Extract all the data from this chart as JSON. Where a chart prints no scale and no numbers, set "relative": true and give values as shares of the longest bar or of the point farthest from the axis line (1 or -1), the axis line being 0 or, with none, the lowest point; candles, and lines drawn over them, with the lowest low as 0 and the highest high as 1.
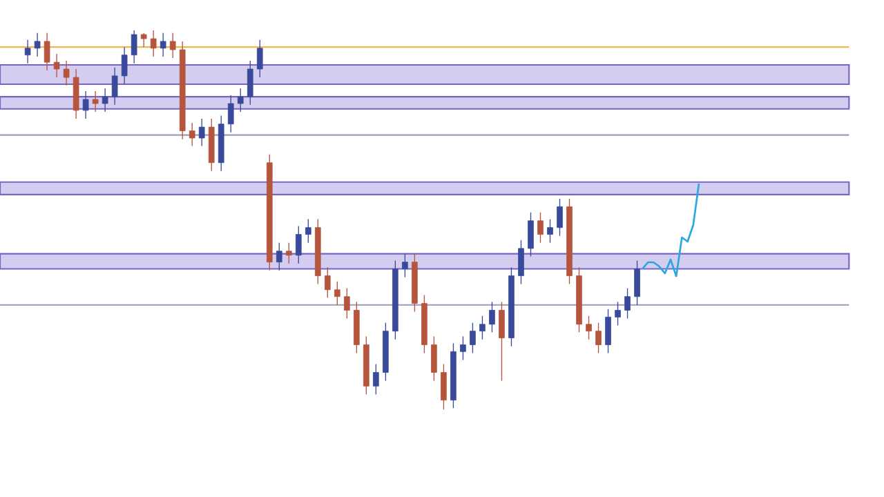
{
  "chart_data": [
    {
      "type": "candlestick",
      "relative": true,
      "categories": [
        null,
        null,
        null,
        null,
        null,
        null,
        null,
        null,
        null,
        null,
        null,
        null,
        null,
        null,
        null,
        null,
        null,
        null,
        null,
        null,
        null,
        null,
        null,
        null,
        null,
        null,
        null,
        null,
        null,
        null,
        null,
        null,
        null,
        null,
        null,
        null,
        null,
        null,
        null,
        null,
        null,
        null,
        null,
        null,
        null,
        null,
        null,
        null,
        null,
        null,
        null,
        null,
        null,
        null,
        null,
        null,
        null,
        null,
        null,
        null,
        null,
        null,
        null,
        null
      ],
      "ohlc": [
        [
          0.935,
          0.975,
          0.913,
          0.953
        ],
        [
          0.953,
          0.993,
          0.931,
          0.971
        ],
        [
          0.971,
          0.993,
          0.895,
          0.916
        ],
        [
          0.916,
          0.938,
          0.876,
          0.898
        ],
        [
          0.898,
          0.92,
          0.855,
          0.876
        ],
        [
          0.876,
          0.898,
          0.767,
          0.789
        ],
        [
          0.789,
          0.84,
          0.767,
          0.818
        ],
        [
          0.818,
          0.84,
          0.785,
          0.807
        ],
        [
          0.807,
          0.847,
          0.785,
          0.825
        ],
        [
          0.825,
          0.902,
          0.804,
          0.88
        ],
        [
          0.88,
          0.956,
          0.858,
          0.935
        ],
        [
          0.935,
          1,
          0.913,
          0.989
        ],
        [
          0.989,
          0.993,
          0.956,
          0.978
        ],
        [
          0.978,
          1,
          0.931,
          0.953
        ],
        [
          0.953,
          0.993,
          0.931,
          0.971
        ],
        [
          0.971,
          0.993,
          0.927,
          0.949
        ],
        [
          0.949,
          0.971,
          0.713,
          0.735
        ],
        [
          0.735,
          0.756,
          0.695,
          0.716
        ],
        [
          0.716,
          0.767,
          0.695,
          0.745
        ],
        [
          0.745,
          0.767,
          0.629,
          0.651
        ],
        [
          0.651,
          0.775,
          0.629,
          0.753
        ],
        [
          0.753,
          0.829,
          0.731,
          0.807
        ],
        [
          0.807,
          0.847,
          0.785,
          0.825
        ],
        [
          0.825,
          0.92,
          0.804,
          0.898
        ],
        [
          0.898,
          0.975,
          0.876,
          0.953
        ],
        [
          0.651,
          0.673,
          0.367,
          0.389
        ],
        [
          0.389,
          0.44,
          0.367,
          0.418
        ],
        [
          0.418,
          0.44,
          0.385,
          0.407
        ],
        [
          0.407,
          0.484,
          0.385,
          0.462
        ],
        [
          0.462,
          0.502,
          0.44,
          0.48
        ],
        [
          0.48,
          0.502,
          0.331,
          0.353
        ],
        [
          0.353,
          0.375,
          0.295,
          0.316
        ],
        [
          0.316,
          0.338,
          0.276,
          0.298
        ],
        [
          0.298,
          0.32,
          0.24,
          0.262
        ],
        [
          0.262,
          0.284,
          0.149,
          0.171
        ],
        [
          0.171,
          0.193,
          0.04,
          0.062
        ],
        [
          0.062,
          0.12,
          0.04,
          0.098
        ],
        [
          0.098,
          0.229,
          0.076,
          0.207
        ],
        [
          0.207,
          0.393,
          0.185,
          0.371
        ],
        [
          0.371,
          0.411,
          0.349,
          0.389
        ],
        [
          0.389,
          0.411,
          0.258,
          0.28
        ],
        [
          0.28,
          0.302,
          0.149,
          0.171
        ],
        [
          0.171,
          0.193,
          0.076,
          0.098
        ],
        [
          0.098,
          0.12,
          0,
          0.025
        ],
        [
          0.025,
          0.175,
          0.004,
          0.153
        ],
        [
          0.153,
          0.193,
          0.131,
          0.171
        ],
        [
          0.171,
          0.229,
          0.149,
          0.207
        ],
        [
          0.207,
          0.247,
          0.185,
          0.225
        ],
        [
          0.225,
          0.284,
          0.204,
          0.262
        ],
        [
          0.262,
          0.284,
          0.076,
          0.189
        ],
        [
          0.189,
          0.375,
          0.167,
          0.353
        ],
        [
          0.353,
          0.447,
          0.331,
          0.425
        ],
        [
          0.425,
          0.52,
          0.404,
          0.498
        ],
        [
          0.498,
          0.52,
          0.44,
          0.462
        ],
        [
          0.462,
          0.502,
          0.44,
          0.48
        ],
        [
          0.48,
          0.556,
          0.458,
          0.535
        ],
        [
          0.535,
          0.556,
          0.331,
          0.353
        ],
        [
          0.353,
          0.375,
          0.204,
          0.225
        ],
        [
          0.225,
          0.247,
          0.185,
          0.207
        ],
        [
          0.207,
          0.229,
          0.149,
          0.171
        ],
        [
          0.171,
          0.265,
          0.149,
          0.244
        ],
        [
          0.244,
          0.284,
          0.222,
          0.262
        ],
        [
          0.262,
          0.32,
          0.24,
          0.298
        ],
        [
          0.298,
          0.393,
          0.276,
          0.371
        ]
      ],
      "bands": [
        {
          "axis": "y",
          "from": 0.858,
          "to": 0.909,
          "color": "#d4cdf0"
        },
        {
          "axis": "y",
          "from": 0.793,
          "to": 0.825,
          "color": "#d4cdf0"
        },
        {
          "axis": "y",
          "from": 0.567,
          "to": 0.6,
          "color": "#d4cdf0"
        },
        {
          "axis": "y",
          "from": 0.371,
          "to": 0.411,
          "color": "#d4cdf0"
        }
      ],
      "ref_lines": [
        {
          "axis": "y",
          "value": 0.956,
          "color": "#f0b84a"
        },
        {
          "axis": "y",
          "value": 0.724,
          "color": "#9e9ab8"
        },
        {
          "axis": "y",
          "value": 0.276,
          "color": "#9e9ab8"
        }
      ]
    },
    {
      "type": "line",
      "relative": true,
      "color": "#29a8e0",
      "categories": [
        null,
        null,
        null,
        null,
        null,
        null,
        null,
        null,
        null,
        null,
        null
      ],
      "values": [
        0.075,
        0.149,
        0.149,
        0.104,
        0.03,
        0.179,
        0,
        0.418,
        0.373,
        0.552,
        1
      ]
    }
  ]
}
